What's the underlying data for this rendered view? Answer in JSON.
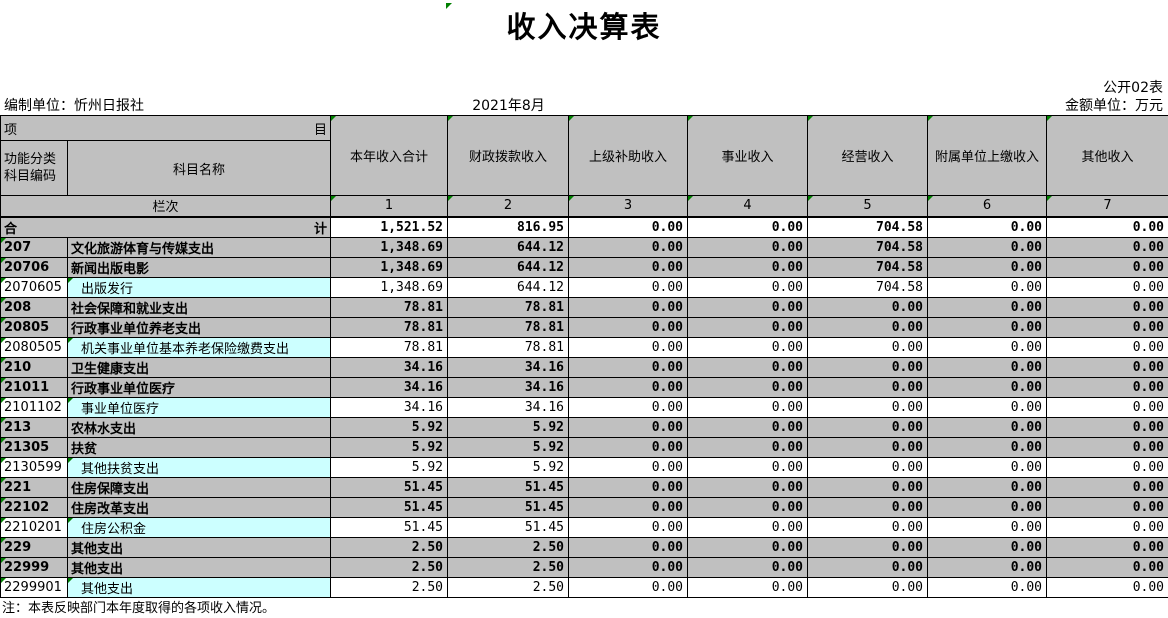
{
  "window": {
    "title": "收入决算表",
    "corner_label": "公开02表",
    "org_label": "编制单位：忻州日报社",
    "period": "2021年8月",
    "unit_label": "金额单位：万元",
    "note": "注：本表反映部门本年度取得的各项收入情况。"
  },
  "colors": {
    "grid_gray": "#c0c0c0",
    "highlight_cyan": "#ccffff",
    "marker_green": "#008000"
  },
  "table": {
    "item_header_left": "项",
    "item_header_right": "目",
    "code_header_line1": "功能分类",
    "code_header_line2": "科目编码",
    "name_header": "科目名称",
    "lanci_label": "栏次",
    "columns": [
      "本年收入合计",
      "财政拨款收入",
      "上级补助收入",
      "事业收入",
      "经营收入",
      "附属单位上缴收入",
      "其他收入"
    ],
    "column_numbers": [
      "1",
      "2",
      "3",
      "4",
      "5",
      "6",
      "7"
    ],
    "total_row": {
      "label_left": "合",
      "label_right": "计",
      "values": [
        "1,521.52",
        "816.95",
        "0.00",
        "0.00",
        "704.58",
        "0.00",
        "0.00"
      ]
    },
    "rows": [
      {
        "code": "207",
        "name": "文化旅游体育与传媒支出",
        "level": 2,
        "values": [
          "1,348.69",
          "644.12",
          "0.00",
          "0.00",
          "704.58",
          "0.00",
          "0.00"
        ]
      },
      {
        "code": "20706",
        "name": "新闻出版电影",
        "level": 2,
        "values": [
          "1,348.69",
          "644.12",
          "0.00",
          "0.00",
          "704.58",
          "0.00",
          "0.00"
        ]
      },
      {
        "code": "2070605",
        "name": "出版发行",
        "level": 3,
        "values": [
          "1,348.69",
          "644.12",
          "0.00",
          "0.00",
          "704.58",
          "0.00",
          "0.00"
        ]
      },
      {
        "code": "208",
        "name": "社会保障和就业支出",
        "level": 2,
        "values": [
          "78.81",
          "78.81",
          "0.00",
          "0.00",
          "0.00",
          "0.00",
          "0.00"
        ]
      },
      {
        "code": "20805",
        "name": "行政事业单位养老支出",
        "level": 2,
        "values": [
          "78.81",
          "78.81",
          "0.00",
          "0.00",
          "0.00",
          "0.00",
          "0.00"
        ]
      },
      {
        "code": "2080505",
        "name": "机关事业单位基本养老保险缴费支出",
        "level": 3,
        "values": [
          "78.81",
          "78.81",
          "0.00",
          "0.00",
          "0.00",
          "0.00",
          "0.00"
        ]
      },
      {
        "code": "210",
        "name": "卫生健康支出",
        "level": 2,
        "values": [
          "34.16",
          "34.16",
          "0.00",
          "0.00",
          "0.00",
          "0.00",
          "0.00"
        ]
      },
      {
        "code": "21011",
        "name": "行政事业单位医疗",
        "level": 2,
        "values": [
          "34.16",
          "34.16",
          "0.00",
          "0.00",
          "0.00",
          "0.00",
          "0.00"
        ]
      },
      {
        "code": "2101102",
        "name": "事业单位医疗",
        "level": 3,
        "values": [
          "34.16",
          "34.16",
          "0.00",
          "0.00",
          "0.00",
          "0.00",
          "0.00"
        ]
      },
      {
        "code": "213",
        "name": "农林水支出",
        "level": 2,
        "values": [
          "5.92",
          "5.92",
          "0.00",
          "0.00",
          "0.00",
          "0.00",
          "0.00"
        ]
      },
      {
        "code": "21305",
        "name": "扶贫",
        "level": 2,
        "values": [
          "5.92",
          "5.92",
          "0.00",
          "0.00",
          "0.00",
          "0.00",
          "0.00"
        ]
      },
      {
        "code": "2130599",
        "name": "其他扶贫支出",
        "level": 3,
        "values": [
          "5.92",
          "5.92",
          "0.00",
          "0.00",
          "0.00",
          "0.00",
          "0.00"
        ]
      },
      {
        "code": "221",
        "name": "住房保障支出",
        "level": 2,
        "values": [
          "51.45",
          "51.45",
          "0.00",
          "0.00",
          "0.00",
          "0.00",
          "0.00"
        ]
      },
      {
        "code": "22102",
        "name": "住房改革支出",
        "level": 2,
        "values": [
          "51.45",
          "51.45",
          "0.00",
          "0.00",
          "0.00",
          "0.00",
          "0.00"
        ]
      },
      {
        "code": "2210201",
        "name": "住房公积金",
        "level": 3,
        "values": [
          "51.45",
          "51.45",
          "0.00",
          "0.00",
          "0.00",
          "0.00",
          "0.00"
        ]
      },
      {
        "code": "229",
        "name": "其他支出",
        "level": 2,
        "values": [
          "2.50",
          "2.50",
          "0.00",
          "0.00",
          "0.00",
          "0.00",
          "0.00"
        ]
      },
      {
        "code": "22999",
        "name": "其他支出",
        "level": 2,
        "values": [
          "2.50",
          "2.50",
          "0.00",
          "0.00",
          "0.00",
          "0.00",
          "0.00"
        ]
      },
      {
        "code": "2299901",
        "name": "其他支出",
        "level": 3,
        "values": [
          "2.50",
          "2.50",
          "0.00",
          "0.00",
          "0.00",
          "0.00",
          "0.00"
        ]
      }
    ]
  }
}
